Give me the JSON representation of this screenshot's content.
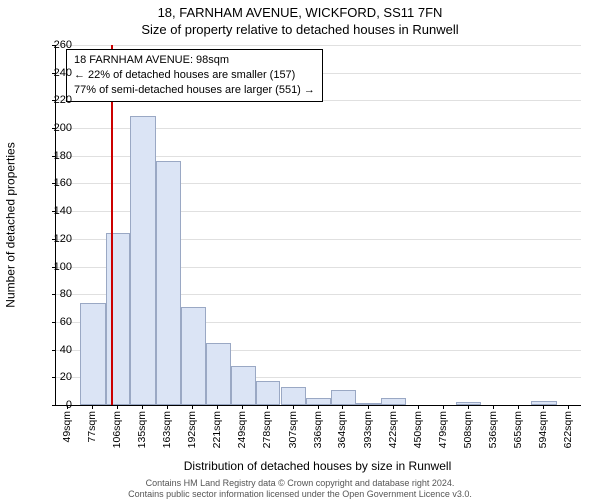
{
  "title_main": "18, FARNHAM AVENUE, WICKFORD, SS11 7FN",
  "title_sub": "Size of property relative to detached houses in Runwell",
  "y_axis_label": "Number of detached properties",
  "x_axis_label": "Distribution of detached houses by size in Runwell",
  "ylim": [
    0,
    260
  ],
  "ytick_step": 20,
  "x_min": 35,
  "x_max": 636,
  "xticks": [
    49,
    77,
    106,
    135,
    163,
    192,
    221,
    249,
    278,
    307,
    336,
    364,
    393,
    422,
    450,
    479,
    508,
    536,
    565,
    594,
    622
  ],
  "xtick_unit": "sqm",
  "bars": [
    {
      "x0": 35,
      "x1": 63,
      "y": 0
    },
    {
      "x0": 63,
      "x1": 92,
      "y": 74
    },
    {
      "x0": 92,
      "x1": 120,
      "y": 124
    },
    {
      "x0": 120,
      "x1": 149,
      "y": 209
    },
    {
      "x0": 149,
      "x1": 178,
      "y": 176
    },
    {
      "x0": 178,
      "x1": 207,
      "y": 71
    },
    {
      "x0": 207,
      "x1": 235,
      "y": 45
    },
    {
      "x0": 235,
      "x1": 264,
      "y": 28
    },
    {
      "x0": 264,
      "x1": 292,
      "y": 17
    },
    {
      "x0": 292,
      "x1": 321,
      "y": 13
    },
    {
      "x0": 321,
      "x1": 350,
      "y": 5
    },
    {
      "x0": 350,
      "x1": 378,
      "y": 11
    },
    {
      "x0": 378,
      "x1": 407,
      "y": 1
    },
    {
      "x0": 407,
      "x1": 436,
      "y": 5
    },
    {
      "x0": 436,
      "x1": 464,
      "y": 0
    },
    {
      "x0": 464,
      "x1": 493,
      "y": 0
    },
    {
      "x0": 493,
      "x1": 522,
      "y": 2
    },
    {
      "x0": 522,
      "x1": 550,
      "y": 0
    },
    {
      "x0": 550,
      "x1": 579,
      "y": 0
    },
    {
      "x0": 579,
      "x1": 608,
      "y": 3
    },
    {
      "x0": 608,
      "x1": 636,
      "y": 0
    }
  ],
  "reference_value": 98,
  "reference_color": "#cc0000",
  "bar_fill": "#dbe4f5",
  "bar_border": "#9aa8c4",
  "grid_color": "#e0e0e0",
  "callout": {
    "line1": "18 FARNHAM AVENUE: 98sqm",
    "line2": "← 22% of detached houses are smaller (157)",
    "line3": "77% of semi-detached houses are larger (551) →"
  },
  "footer_line1": "Contains HM Land Registry data © Crown copyright and database right 2024.",
  "footer_line2": "Contains public sector information licensed under the Open Government Licence v3.0."
}
